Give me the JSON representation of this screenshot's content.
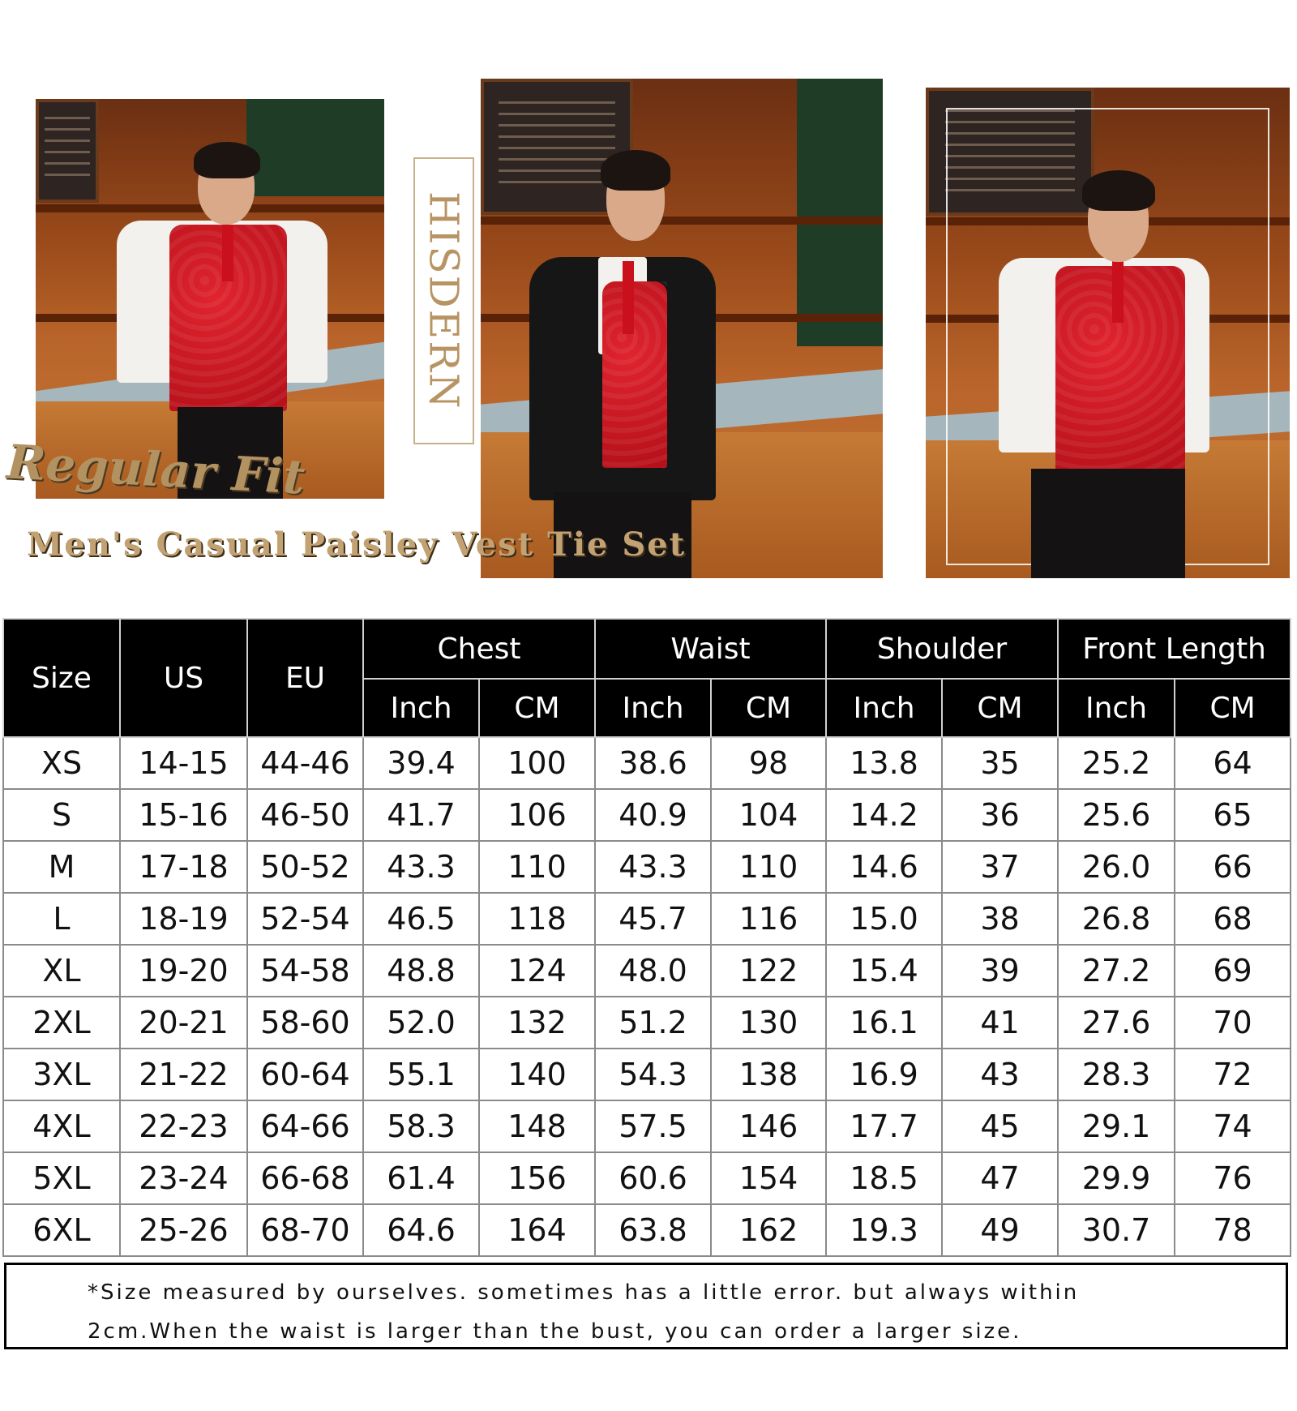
{
  "branding": {
    "brand_name": "HISDERN",
    "fit_label": "Regular Fit",
    "product_title": "Men's Casual Paisley Vest Tie Set",
    "accent_color": "#b89464",
    "vest_color": "#d11a24"
  },
  "size_chart": {
    "columns": {
      "size": "Size",
      "us": "US",
      "eu": "EU",
      "groups": [
        "Chest",
        "Waist",
        "Shoulder",
        "Front Length"
      ],
      "units": [
        "Inch",
        "CM",
        "Inch",
        "CM",
        "Inch",
        "CM",
        "Inch",
        "CM"
      ]
    },
    "rows": [
      [
        "XS",
        "14-15",
        "44-46",
        "39.4",
        "100",
        "38.6",
        "98",
        "13.8",
        "35",
        "25.2",
        "64"
      ],
      [
        "S",
        "15-16",
        "46-50",
        "41.7",
        "106",
        "40.9",
        "104",
        "14.2",
        "36",
        "25.6",
        "65"
      ],
      [
        "M",
        "17-18",
        "50-52",
        "43.3",
        "110",
        "43.3",
        "110",
        "14.6",
        "37",
        "26.0",
        "66"
      ],
      [
        "L",
        "18-19",
        "52-54",
        "46.5",
        "118",
        "45.7",
        "116",
        "15.0",
        "38",
        "26.8",
        "68"
      ],
      [
        "XL",
        "19-20",
        "54-58",
        "48.8",
        "124",
        "48.0",
        "122",
        "15.4",
        "39",
        "27.2",
        "69"
      ],
      [
        "2XL",
        "20-21",
        "58-60",
        "52.0",
        "132",
        "51.2",
        "130",
        "16.1",
        "41",
        "27.6",
        "70"
      ],
      [
        "3XL",
        "21-22",
        "60-64",
        "55.1",
        "140",
        "54.3",
        "138",
        "16.9",
        "43",
        "28.3",
        "72"
      ],
      [
        "4XL",
        "22-23",
        "64-66",
        "58.3",
        "148",
        "57.5",
        "146",
        "17.7",
        "45",
        "29.1",
        "74"
      ],
      [
        "5XL",
        "23-24",
        "66-68",
        "61.4",
        "156",
        "60.6",
        "154",
        "18.5",
        "47",
        "29.9",
        "76"
      ],
      [
        "6XL",
        "25-26",
        "68-70",
        "64.6",
        "164",
        "63.8",
        "162",
        "19.3",
        "49",
        "30.7",
        "78"
      ]
    ]
  },
  "note": {
    "line1": "*Size measured by ourselves. sometimes has a little error. but always within",
    "line2": "2cm.When the waist is larger than the bust, you can order a larger size."
  }
}
